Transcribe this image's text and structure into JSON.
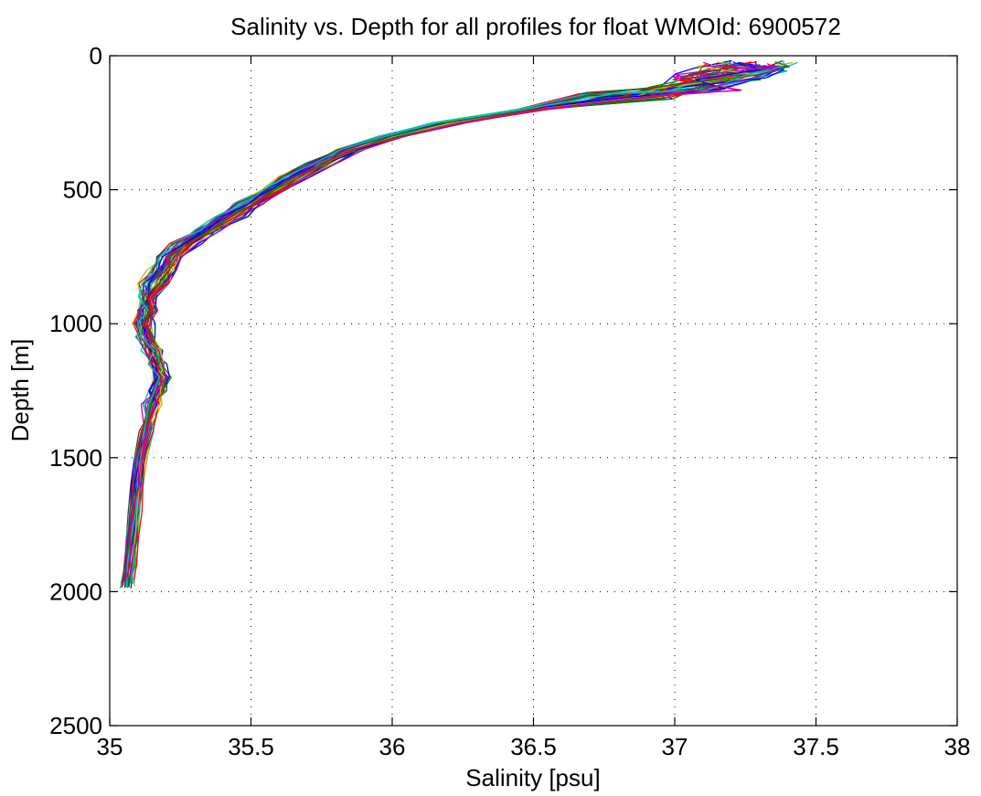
{
  "chart_data": {
    "type": "line",
    "title": "Salinity vs. Depth for all profiles for float WMOId: 6900572",
    "xlabel": "Salinity [psu]",
    "ylabel": "Depth [m]",
    "xlim": [
      35,
      38
    ],
    "ylim": [
      0,
      2500
    ],
    "y_reversed": true,
    "grid": true,
    "legend": "none",
    "x_ticks": [
      "35",
      "35.5",
      "36",
      "36.5",
      "37",
      "37.5",
      "38"
    ],
    "y_ticks": [
      "0",
      "500",
      "1000",
      "1500",
      "2000",
      "2500"
    ],
    "x_tick_values": [
      35,
      35.5,
      36,
      36.5,
      37,
      37.5,
      38
    ],
    "y_tick_values": [
      0,
      500,
      1000,
      1500,
      2000,
      2500
    ],
    "base_profile": {
      "depth": [
        30,
        50,
        80,
        120,
        150,
        200,
        250,
        300,
        350,
        400,
        450,
        500,
        550,
        600,
        650,
        700,
        750,
        800,
        850,
        900,
        950,
        1000,
        1050,
        1100,
        1150,
        1200,
        1250,
        1300,
        1400,
        1500,
        1600,
        1700,
        1800,
        1900,
        1980
      ],
      "salinity": [
        37.25,
        37.22,
        37.15,
        37.05,
        36.8,
        36.5,
        36.2,
        36.0,
        35.85,
        35.75,
        35.66,
        35.58,
        35.5,
        35.43,
        35.35,
        35.27,
        35.22,
        35.19,
        35.16,
        35.14,
        35.13,
        35.12,
        35.13,
        35.15,
        35.17,
        35.18,
        35.17,
        35.15,
        35.13,
        35.11,
        35.1,
        35.09,
        35.08,
        35.07,
        35.06
      ]
    },
    "series_count": 40,
    "series_colors": [
      "#0000ff",
      "#008000",
      "#ff0000",
      "#00bfbf",
      "#bf00bf",
      "#bfbf00",
      "#404040",
      "#0000ff",
      "#008000",
      "#ff0000",
      "#00bfbf",
      "#bf00bf",
      "#bfbf00",
      "#404040"
    ]
  }
}
